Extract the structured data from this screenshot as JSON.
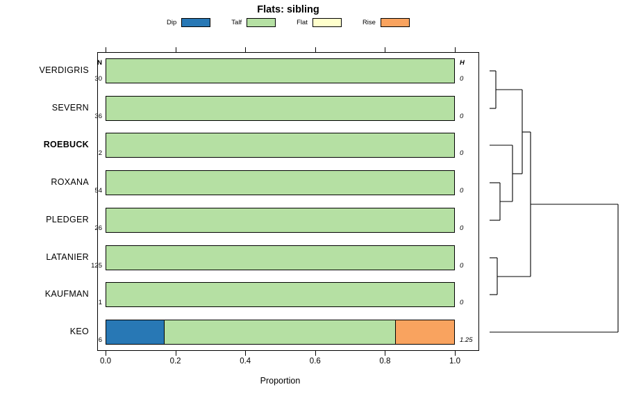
{
  "title": "Flats: sibling",
  "legend": {
    "items": [
      {
        "label": "Dip",
        "color": "#2878b5"
      },
      {
        "label": "Talf",
        "color": "#b5e0a3"
      },
      {
        "label": "Flat",
        "color": "#ffffcc"
      },
      {
        "label": "Rise",
        "color": "#f9a35f"
      }
    ]
  },
  "columns": {
    "n_header": "N",
    "h_header": "H"
  },
  "axis": {
    "label": "Proportion",
    "ticks": [
      "0.0",
      "0.2",
      "0.4",
      "0.6",
      "0.8",
      "1.0"
    ],
    "tick_values": [
      0,
      0.2,
      0.4,
      0.6,
      0.8,
      1.0
    ]
  },
  "chart_data": {
    "type": "bar",
    "orientation": "horizontal-stacked",
    "title": "Flats: sibling",
    "xlabel": "Proportion",
    "xlim": [
      0,
      1
    ],
    "categories": [
      "Dip",
      "Talf",
      "Flat",
      "Rise"
    ],
    "colors": {
      "Dip": "#2878b5",
      "Talf": "#b5e0a3",
      "Flat": "#ffffcc",
      "Rise": "#f9a35f"
    },
    "rows": [
      {
        "label": "VERDIGRIS",
        "n": "30",
        "h": "0",
        "bold": false,
        "segments": [
          0,
          1,
          0,
          0
        ]
      },
      {
        "label": "SEVERN",
        "n": "36",
        "h": "0",
        "bold": false,
        "segments": [
          0,
          1,
          0,
          0
        ]
      },
      {
        "label": "ROEBUCK",
        "n": "2",
        "h": "0",
        "bold": true,
        "segments": [
          0,
          1,
          0,
          0
        ]
      },
      {
        "label": "ROXANA",
        "n": "54",
        "h": "0",
        "bold": false,
        "segments": [
          0,
          1,
          0,
          0
        ]
      },
      {
        "label": "PLEDGER",
        "n": "26",
        "h": "0",
        "bold": false,
        "segments": [
          0,
          1,
          0,
          0
        ]
      },
      {
        "label": "LATANIER",
        "n": "125",
        "h": "0",
        "bold": false,
        "segments": [
          0,
          1,
          0,
          0
        ]
      },
      {
        "label": "KAUFMAN",
        "n": "1",
        "h": "0",
        "bold": false,
        "segments": [
          0,
          1,
          0,
          0
        ]
      },
      {
        "label": "KEO",
        "n": "6",
        "h": "1.25",
        "bold": false,
        "segments": [
          0.167,
          0.666,
          0,
          0.167
        ]
      }
    ]
  },
  "dendrogram": {
    "segments": [
      [
        705,
        102,
        714,
        102
      ],
      [
        705,
        156,
        714,
        156
      ],
      [
        714,
        102,
        714,
        156
      ],
      [
        714,
        129,
        752,
        129
      ],
      [
        705,
        263,
        720,
        263
      ],
      [
        705,
        317,
        720,
        317
      ],
      [
        720,
        263,
        720,
        317
      ],
      [
        720,
        290,
        738,
        290
      ],
      [
        705,
        209,
        738,
        209
      ],
      [
        738,
        209,
        738,
        290
      ],
      [
        738,
        250,
        752,
        250
      ],
      [
        752,
        129,
        752,
        250
      ],
      [
        752,
        190,
        764,
        190
      ],
      [
        705,
        371,
        716,
        371
      ],
      [
        705,
        424,
        716,
        424
      ],
      [
        716,
        371,
        716,
        424
      ],
      [
        716,
        398,
        764,
        398
      ],
      [
        764,
        190,
        764,
        398
      ],
      [
        764,
        294,
        890,
        294
      ],
      [
        705,
        478,
        890,
        478
      ],
      [
        890,
        294,
        890,
        478
      ]
    ]
  }
}
